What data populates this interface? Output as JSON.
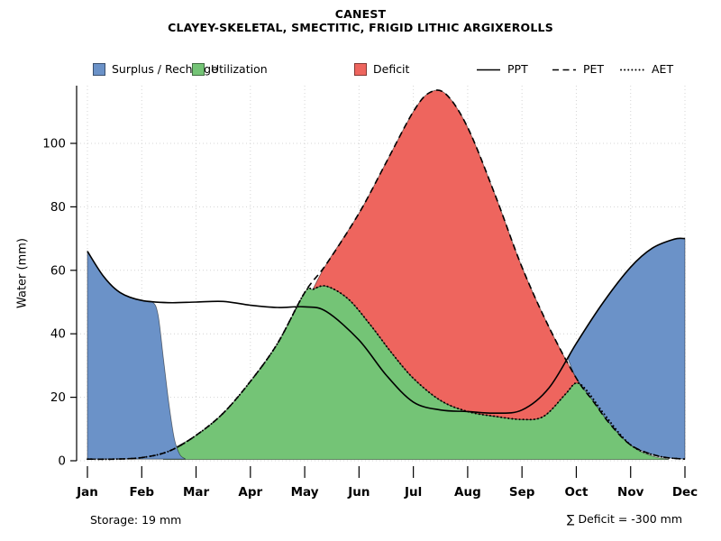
{
  "chart_data": {
    "type": "area",
    "title": "CANEST",
    "subtitle": "CLAYEY-SKELETAL, SMECTITIC, FRIGID LITHIC ARGIXEROLLS",
    "ylabel": "Water (mm)",
    "x_tick_labels": [
      "Jan",
      "Feb",
      "Mar",
      "Apr",
      "May",
      "Jun",
      "Jul",
      "Aug",
      "Sep",
      "Oct",
      "Nov",
      "Dec"
    ],
    "y_ticks": [
      0,
      20,
      40,
      60,
      80,
      100
    ],
    "ylim": [
      0,
      118
    ],
    "grid": true,
    "annotations": {
      "storage": "Storage: 19 mm",
      "deficit": "∑ Deficit = -300 mm"
    },
    "colors": {
      "surplus": "#6b92c8",
      "utilization": "#74c476",
      "deficit": "#ee655e",
      "line": "#000000",
      "grid": "#d4d4d4"
    },
    "legend": [
      {
        "label": "Surplus / Recharge",
        "type": "fill",
        "color_key": "surplus"
      },
      {
        "label": "Utilization",
        "type": "fill",
        "color_key": "utilization"
      },
      {
        "label": "Deficit",
        "type": "fill",
        "color_key": "deficit"
      },
      {
        "label": "PPT",
        "type": "line",
        "style": "solid"
      },
      {
        "label": "PET",
        "type": "line",
        "style": "dashed"
      },
      {
        "label": "AET",
        "type": "line",
        "style": "dotted"
      }
    ],
    "series": [
      {
        "name": "PPT",
        "style": "solid",
        "x": [
          0,
          0.3,
          0.6,
          1,
          1.5,
          2,
          2.5,
          3,
          3.5,
          4,
          4.4,
          5,
          5.5,
          6,
          6.5,
          7,
          7.5,
          8,
          8.5,
          9,
          9.5,
          10,
          10.4,
          10.8,
          11
        ],
        "values": [
          66,
          58,
          53,
          50.5,
          49.8,
          50,
          50.2,
          49,
          48.3,
          48.5,
          47,
          38,
          27,
          18.5,
          16,
          15.5,
          15,
          16,
          23,
          37,
          50,
          61,
          67,
          69.8,
          70
        ]
      },
      {
        "name": "PET",
        "style": "dashed",
        "x": [
          0,
          0.5,
          1,
          1.5,
          2,
          2.5,
          3,
          3.5,
          4,
          4.4,
          5,
          5.5,
          6,
          6.3,
          6.6,
          7,
          7.5,
          8,
          8.5,
          9,
          9.3,
          9.6,
          10,
          10.5,
          11
        ],
        "values": [
          0.5,
          0.5,
          1,
          3,
          8,
          15,
          25,
          37,
          53,
          62,
          78,
          94,
          110,
          116,
          115.5,
          105,
          84,
          61,
          42,
          26,
          19,
          12,
          5,
          1.5,
          0.5
        ]
      },
      {
        "name": "AET",
        "style": "dotted",
        "x": [
          0,
          0.5,
          1,
          1.5,
          2,
          2.5,
          3,
          3.5,
          4,
          4.15,
          4.4,
          4.8,
          5.2,
          5.6,
          6,
          6.5,
          7,
          7.5,
          8,
          8.4,
          8.8,
          9,
          9.2,
          9.5,
          10,
          10.5,
          11
        ],
        "values": [
          0.5,
          0.5,
          1,
          3,
          8,
          15,
          25,
          37,
          53,
          54,
          55,
          51,
          43,
          34,
          26,
          19,
          15.5,
          14,
          13,
          14,
          21,
          24.5,
          22,
          15,
          5,
          1.5,
          0.5
        ]
      }
    ],
    "regions": [
      {
        "name": "utilization",
        "color_key": "utilization",
        "top": [
          [
            1.4,
            0.5
          ],
          [
            1.5,
            3
          ],
          [
            2,
            8
          ],
          [
            2.5,
            15
          ],
          [
            3,
            25
          ],
          [
            3.5,
            37
          ],
          [
            4,
            53
          ],
          [
            4.15,
            54
          ],
          [
            4.4,
            55
          ],
          [
            4.8,
            51
          ],
          [
            5.2,
            43
          ],
          [
            5.6,
            34
          ],
          [
            6,
            26
          ],
          [
            6.5,
            19
          ],
          [
            7,
            15.5
          ],
          [
            7.5,
            14
          ],
          [
            8,
            13
          ],
          [
            8.4,
            14
          ],
          [
            8.8,
            21
          ],
          [
            9,
            24.5
          ],
          [
            9.2,
            22
          ],
          [
            9.5,
            15
          ],
          [
            10,
            5
          ],
          [
            10.4,
            1.5
          ],
          [
            10.7,
            0.5
          ]
        ],
        "bottom": [
          [
            1.4,
            0.4
          ],
          [
            10.7,
            0.4
          ]
        ]
      },
      {
        "name": "deficit",
        "color_key": "deficit",
        "top": [
          [
            4.15,
            54
          ],
          [
            4.4,
            62
          ],
          [
            5,
            78
          ],
          [
            5.5,
            94
          ],
          [
            6,
            110
          ],
          [
            6.3,
            116
          ],
          [
            6.6,
            115.5
          ],
          [
            7,
            105
          ],
          [
            7.5,
            84
          ],
          [
            8,
            61
          ],
          [
            8.5,
            42
          ],
          [
            9,
            26
          ],
          [
            9.2,
            22
          ]
        ],
        "bottom": [
          [
            4.15,
            54
          ],
          [
            4.4,
            55
          ],
          [
            4.8,
            51
          ],
          [
            5.2,
            43
          ],
          [
            5.6,
            34
          ],
          [
            6,
            26
          ],
          [
            6.5,
            19
          ],
          [
            7,
            15.5
          ],
          [
            7.5,
            14
          ],
          [
            8,
            13
          ],
          [
            8.4,
            14
          ],
          [
            8.8,
            21
          ],
          [
            9,
            24.5
          ],
          [
            9.2,
            22
          ]
        ]
      },
      {
        "name": "surplus-recharge-left",
        "color_key": "surplus",
        "top": [
          [
            0,
            66
          ],
          [
            0.3,
            58
          ],
          [
            0.6,
            53
          ],
          [
            1,
            50.5
          ],
          [
            1.2,
            50
          ],
          [
            1.3,
            46
          ],
          [
            1.4,
            32
          ],
          [
            1.5,
            18
          ],
          [
            1.6,
            7
          ],
          [
            1.7,
            2
          ],
          [
            1.8,
            0.6
          ]
        ],
        "bottom": [
          [
            0,
            0.5
          ],
          [
            1.8,
            0.5
          ]
        ]
      },
      {
        "name": "surplus-recharge-right",
        "color_key": "surplus",
        "top": [
          [
            8.85,
            32
          ],
          [
            9,
            37
          ],
          [
            9.5,
            50
          ],
          [
            10,
            61
          ],
          [
            10.4,
            67
          ],
          [
            10.8,
            69.8
          ],
          [
            11,
            70
          ]
        ],
        "bottom": [
          [
            8.85,
            32
          ],
          [
            9,
            26
          ],
          [
            9.3,
            19
          ],
          [
            9.6,
            12
          ],
          [
            10,
            5
          ],
          [
            10.5,
            1.5
          ],
          [
            11,
            0.5
          ]
        ]
      }
    ]
  }
}
